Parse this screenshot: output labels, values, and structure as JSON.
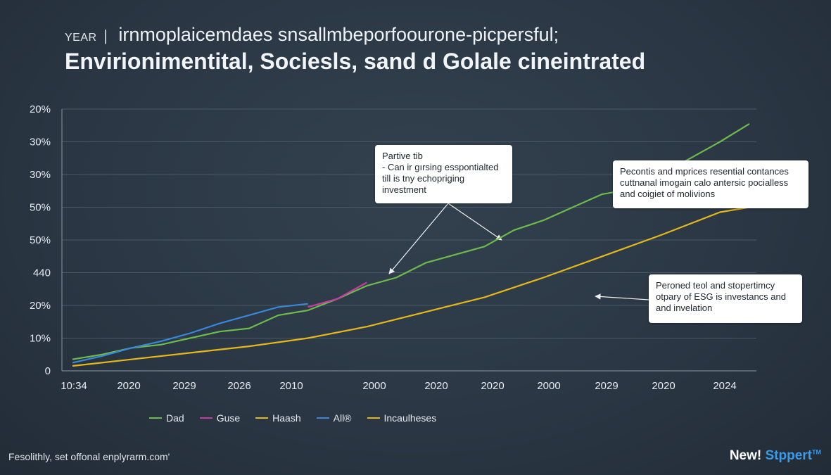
{
  "header": {
    "year_label": "YEAR",
    "separator": "|",
    "title_line1": "irnmoplaicemdaes snsallmbeporfoourone-picpersful;",
    "title_line2": "Envirionimentital, Sociesls, sand d Golale cineintrated"
  },
  "chart_data": {
    "type": "line",
    "title": "",
    "xlabel": "",
    "ylabel": "",
    "y_tick_labels": [
      "0",
      "10%",
      "20%",
      "440",
      "50%",
      "50%",
      "30%",
      "30%",
      "20%"
    ],
    "x_tick_labels": [
      "10:34",
      "2020",
      "2029",
      "2026",
      "2010",
      "2000",
      "2020",
      "2020",
      "2000",
      "2029",
      "2020",
      "2024"
    ],
    "ylim": [
      0,
      8
    ],
    "grid": true,
    "legend_position": "bottom",
    "series": [
      {
        "name": "Dad",
        "color": "#6dbb4c",
        "x": [
          0,
          0.5,
          1,
          1.5,
          2,
          2.5,
          3,
          3.5,
          4,
          4.5,
          5,
          5.5,
          6,
          6.5,
          7,
          7.5,
          8,
          8.5,
          9,
          9.5,
          10,
          10.5,
          11,
          11.5
        ],
        "y": [
          0.35,
          0.5,
          0.7,
          0.8,
          1.0,
          1.2,
          1.3,
          1.7,
          1.85,
          2.2,
          2.6,
          2.85,
          3.3,
          3.55,
          3.8,
          4.3,
          4.6,
          5.0,
          5.4,
          5.55,
          6.0,
          6.5,
          7.0,
          7.55
        ]
      },
      {
        "name": "Guse",
        "color": "#c23ea0",
        "x": [
          4,
          4.5,
          5
        ],
        "y": [
          1.95,
          2.2,
          2.7
        ]
      },
      {
        "name": "Haash",
        "color": "#e3b81c",
        "x": [
          0,
          1,
          2,
          3,
          4,
          5,
          6,
          7,
          8,
          9,
          10,
          11,
          11.5
        ],
        "y": [
          0.15,
          0.35,
          0.55,
          0.75,
          1.0,
          1.35,
          1.8,
          2.25,
          2.85,
          3.5,
          4.15,
          4.85,
          5.0
        ]
      },
      {
        "name": "All®",
        "color": "#3a87d8",
        "x": [
          0,
          0.5,
          1,
          1.5,
          2,
          2.5,
          3,
          3.5,
          4
        ],
        "y": [
          0.25,
          0.45,
          0.7,
          0.9,
          1.15,
          1.45,
          1.7,
          1.95,
          2.05
        ]
      },
      {
        "name": "Incaulheses",
        "color": "#e3b81c",
        "x": [],
        "y": []
      }
    ]
  },
  "annotations": [
    {
      "lines": [
        "Partive tib",
        "- Can ir gırsing esspontialted",
        "till is tny echopriging",
        "investment"
      ]
    },
    {
      "lines": [
        "Pecontis and mprices resential contances",
        "cuttnanal imogain calo antersic pocialless",
        "and coigiet of molivions"
      ]
    },
    {
      "lines": [
        "Peroned teol and stopertimcy",
        "otpary of ESG is investancs and",
        "and invelation"
      ]
    }
  ],
  "footer": {
    "text": "Fesolithly, set offonal enplyrarm.com'"
  },
  "brand": {
    "prefix": "New! ",
    "accent": "Stppert",
    "mark": "TM"
  }
}
